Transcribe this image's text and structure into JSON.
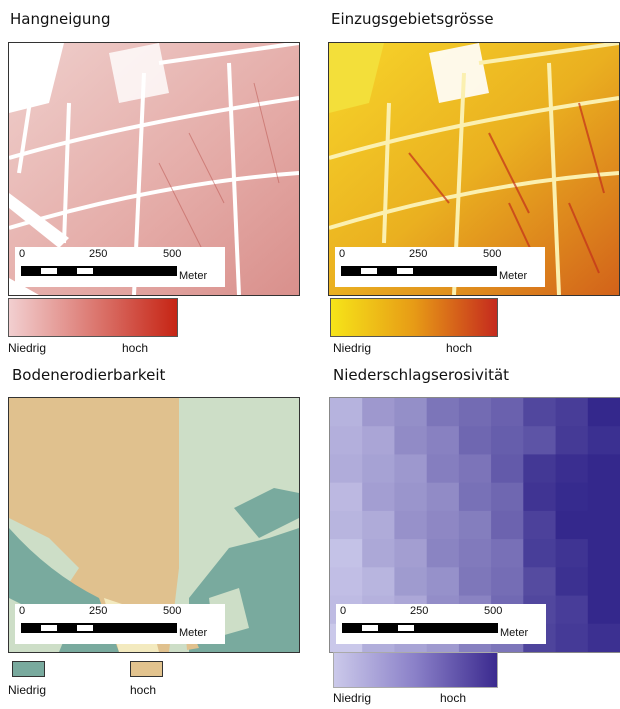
{
  "panels": {
    "slope": {
      "title": "Hangneigung",
      "legend": {
        "low": "Niedrig",
        "high": "hoch",
        "colors": [
          "#f2cfd0",
          "#c62414"
        ]
      }
    },
    "catchment": {
      "title": "Einzugsgebietsgrösse",
      "legend": {
        "low": "Niedrig",
        "high": "hoch",
        "colors": [
          "#f6e419",
          "#c52a1e"
        ]
      }
    },
    "erodibility": {
      "title": "Bodenerodierbarkeit",
      "legend": {
        "low": "Niedrig",
        "high": "hoch",
        "colors": [
          "#79aa9e",
          "#e2c38e"
        ]
      }
    },
    "erosivity": {
      "title": "Niederschlagserosivität",
      "legend": {
        "low": "Niedrig",
        "high": "hoch",
        "colors": [
          "#cbc9ea",
          "#3b2a8f"
        ]
      }
    }
  },
  "scale": {
    "ticks": [
      "0",
      "250",
      "500"
    ],
    "unit": "Meter"
  }
}
